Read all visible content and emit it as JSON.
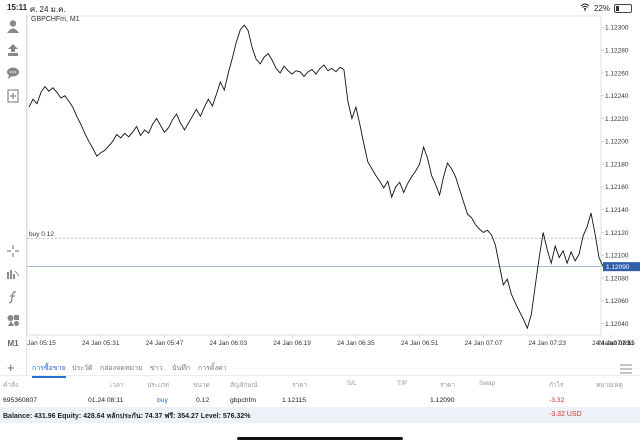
{
  "status_bar": {
    "time": "15:11",
    "date": "ศ. 24 ม.ค.",
    "battery": "22%",
    "battery_level": 0.22
  },
  "chart": {
    "symbol_label": "GBPCHFm, M1",
    "buy_line_label": "buy 0.12",
    "current_price_label": "1.12090",
    "x_labels": [
      "24 Jan 05:15",
      "24 Jan 05:31",
      "24 Jan 05:47",
      "24 Jan 06:03",
      "24 Jan 06:19",
      "24 Jan 06:35",
      "24 Jan 06:51",
      "24 Jan 07:07",
      "24 Jan 07:23",
      "24 Jan 07:39",
      "24 Jan 07:55",
      "24 Jan 08:11"
    ],
    "y_labels": [
      "1.12300",
      "1.12280",
      "1.12260",
      "1.12240",
      "1.12220",
      "1.12200",
      "1.12180",
      "1.12160",
      "1.12140",
      "1.12120",
      "1.12100",
      "1.12080",
      "1.12060",
      "1.12040"
    ]
  },
  "chart_data": {
    "type": "line",
    "title": "GBPCHFm, M1",
    "xlabel": "",
    "ylabel": "",
    "ylim": [
      1.1203,
      1.1231
    ],
    "x_range": [
      "24 Jan 05:13",
      "24 Jan 08:11"
    ],
    "buy_level": 1.12115,
    "current_price": 1.1209,
    "series": [
      {
        "values": [
          1.1223,
          1.12237,
          1.12233,
          1.12243,
          1.12248,
          1.12244,
          1.12247,
          1.12243,
          1.12238,
          1.1224,
          1.12235,
          1.1223,
          1.12222,
          1.12215,
          1.12207,
          1.122,
          1.12194,
          1.12187,
          1.1219,
          1.12192,
          1.12196,
          1.122,
          1.12206,
          1.12203,
          1.12207,
          1.12204,
          1.12208,
          1.12213,
          1.12205,
          1.1221,
          1.12207,
          1.12215,
          1.1222,
          1.12214,
          1.12208,
          1.12212,
          1.12219,
          1.12224,
          1.12216,
          1.1221,
          1.12216,
          1.12222,
          1.12228,
          1.12222,
          1.1223,
          1.12237,
          1.12231,
          1.12241,
          1.12252,
          1.12245,
          1.1226,
          1.12273,
          1.12287,
          1.12298,
          1.12302,
          1.12297,
          1.12282,
          1.12272,
          1.12268,
          1.12274,
          1.12277,
          1.12271,
          1.12264,
          1.1226,
          1.12266,
          1.12262,
          1.12259,
          1.12262,
          1.12261,
          1.12257,
          1.12261,
          1.12263,
          1.12259,
          1.12264,
          1.12267,
          1.12262,
          1.12264,
          1.12261,
          1.12265,
          1.12263,
          1.12235,
          1.1222,
          1.1223,
          1.12215,
          1.12198,
          1.12182,
          1.12176,
          1.1217,
          1.12165,
          1.12159,
          1.12165,
          1.12151,
          1.1216,
          1.12164,
          1.12155,
          1.12163,
          1.12169,
          1.12174,
          1.1218,
          1.12195,
          1.12185,
          1.1217,
          1.12162,
          1.12153,
          1.12169,
          1.12181,
          1.12176,
          1.12169,
          1.12158,
          1.12147,
          1.12136,
          1.12133,
          1.12127,
          1.12123,
          1.1212,
          1.12122,
          1.12118,
          1.12109,
          1.12091,
          1.12074,
          1.12079,
          1.12066,
          1.12058,
          1.12051,
          1.12044,
          1.12036,
          1.12048,
          1.12073,
          1.12098,
          1.1212,
          1.12105,
          1.12093,
          1.12108,
          1.12098,
          1.12104,
          1.12093,
          1.12103,
          1.12095,
          1.12101,
          1.12117,
          1.12125,
          1.12137,
          1.12119,
          1.12098,
          1.1209
        ]
      }
    ]
  },
  "tabs": [
    "การซื้อขาย",
    "ประวัติ",
    "กล่องจดหมาย",
    "ข่าว",
    "บันทึก",
    "การตั้งค่า"
  ],
  "table": {
    "headers": [
      "คำสั่ง",
      "เวลา",
      "ประเภท",
      "ขนาด",
      "สัญลักษณ์",
      "ราคา",
      "S/L",
      "T/P",
      "ราคา",
      "Swap",
      "กำไร",
      "หมายเหตุ"
    ],
    "row": {
      "order": "695360807",
      "time": "01.24 08:11",
      "type": "buy",
      "size": "0.12",
      "symbol": "gbpchfm",
      "open_price": "1.12115",
      "current_price": "1.12090",
      "profit": "-3.32"
    }
  },
  "balance_line": "Balance: 431.96 Equity: 428.64 หลักประกัน: 74.37 ฟรี: 354.27 Level: 576.32%",
  "total_profit": "-3.32  USD",
  "colors": {
    "accent": "#2a6bd6",
    "loss": "#d0302a",
    "line": "#111111",
    "price_line": "#8aa4c8"
  },
  "sidebar_icons": [
    "account-icon",
    "trade-icon",
    "chat-icon",
    "new-document-icon",
    "crosshair-icon",
    "indicator-icon",
    "function-icon",
    "objects-icon"
  ],
  "timeframe_label": "M1"
}
